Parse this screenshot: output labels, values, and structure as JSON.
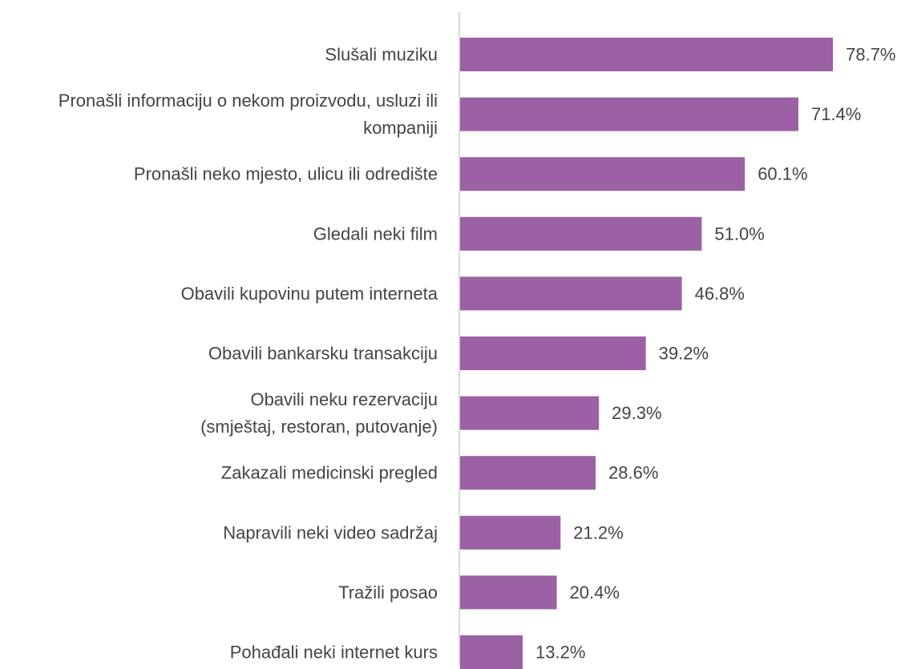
{
  "chart_data": {
    "type": "bar",
    "orientation": "horizontal",
    "title": "",
    "xlabel": "",
    "ylabel": "",
    "xlim": [
      0,
      80
    ],
    "grid": false,
    "legend": "none",
    "value_format": "%",
    "bar_color": "#9b61a4",
    "categories": [
      [
        "Slušali muziku"
      ],
      [
        "Pronašli informaciju o nekom proizvodu, usluzi ili",
        "kompaniji"
      ],
      [
        "Pronašli neko mjesto, ulicu ili odredište"
      ],
      [
        "Gledali neki film"
      ],
      [
        "Obavili kupovinu putem interneta"
      ],
      [
        "Obavili bankarsku transakciju"
      ],
      [
        "Obavili neku rezervaciju",
        "(smještaj, restoran, putovanje)"
      ],
      [
        "Zakazali medicinski pregled"
      ],
      [
        "Napravili neki video sadržaj"
      ],
      [
        "Tražili posao"
      ],
      [
        "Pohađali neki internet kurs"
      ]
    ],
    "value_labels": [
      "78.7%",
      "71.4%",
      "60.1%",
      "51.0%",
      "46.8%",
      "39.2%",
      "29.3%",
      "28.6%",
      "21.2%",
      "20.4%",
      "13.2%"
    ],
    "values": [
      78.7,
      71.4,
      60.1,
      51.0,
      46.8,
      39.2,
      29.3,
      28.6,
      21.2,
      20.4,
      13.2
    ]
  }
}
